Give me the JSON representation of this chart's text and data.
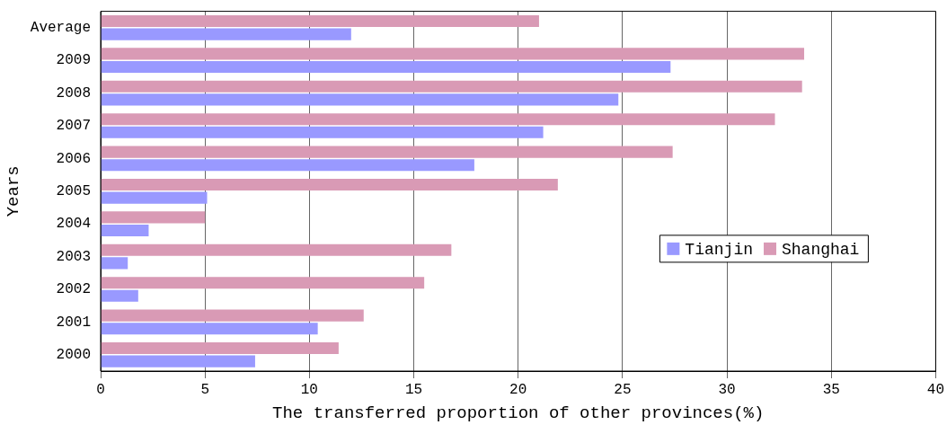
{
  "chart_data": {
    "type": "bar",
    "orientation": "horizontal",
    "xlabel": "The transferred proportion of other provinces(%)",
    "ylabel": "Years",
    "categories": [
      "Average",
      "2009",
      "2008",
      "2007",
      "2006",
      "2005",
      "2004",
      "2003",
      "2002",
      "2001",
      "2000"
    ],
    "series": [
      {
        "name": "Tianjin",
        "color": "#9999ff",
        "values": [
          12.0,
          27.3,
          24.8,
          21.2,
          17.9,
          5.1,
          2.3,
          1.3,
          1.8,
          10.4,
          7.4
        ]
      },
      {
        "name": "Shanghai",
        "color": "#d99ab5",
        "values": [
          21.0,
          33.7,
          33.6,
          32.3,
          27.4,
          21.9,
          5.0,
          16.8,
          15.5,
          12.6,
          11.4
        ]
      }
    ],
    "xlim": [
      0,
      40
    ],
    "xticks": [
      0,
      5,
      10,
      15,
      20,
      25,
      30,
      35,
      40
    ],
    "grid": "x",
    "legend": "right"
  }
}
